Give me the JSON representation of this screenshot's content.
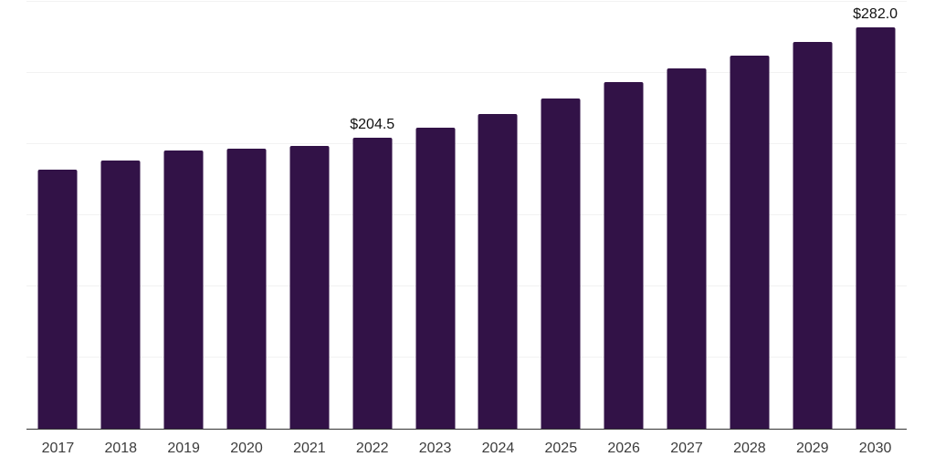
{
  "chart_data": {
    "type": "bar",
    "title": "",
    "xlabel": "",
    "ylabel": "",
    "categories": [
      "2017",
      "2018",
      "2019",
      "2020",
      "2021",
      "2022",
      "2023",
      "2024",
      "2025",
      "2026",
      "2027",
      "2028",
      "2029",
      "2030"
    ],
    "values": [
      182.0,
      188.5,
      195.5,
      196.5,
      199.0,
      204.5,
      211.5,
      221.0,
      232.0,
      243.5,
      253.0,
      262.0,
      272.0,
      282.0
    ],
    "data_labels": [
      "",
      "",
      "",
      "",
      "",
      "$204.5",
      "",
      "",
      "",
      "",
      "",
      "",
      "",
      "$282.0"
    ],
    "ylim": [
      0,
      300
    ],
    "gridline_step": 50,
    "grid": "horizontal",
    "y_tick_labels_visible": false,
    "legend": "none",
    "colors": {
      "bar": "#321247",
      "gridline": "#f2f2f2",
      "axis_line": "#333333",
      "tick_label": "#3c3c3c",
      "data_label": "#111111",
      "background": "#ffffff"
    }
  }
}
